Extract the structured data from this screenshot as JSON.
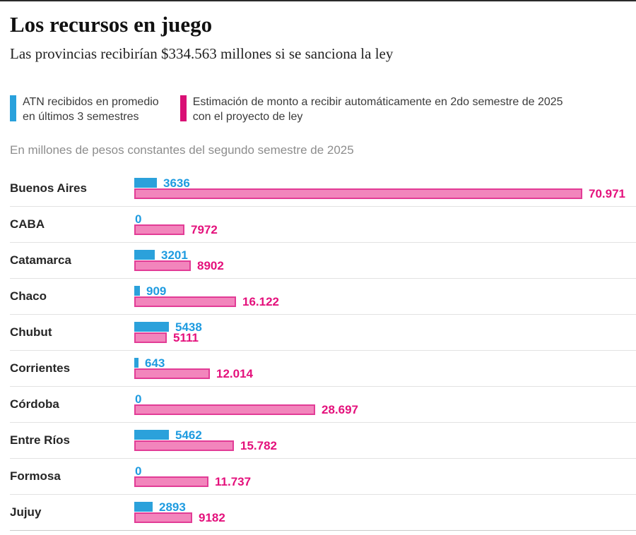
{
  "header": {
    "title": "Los recursos en juego",
    "subtitle": "Las provincias recibirían $334.563 millones si se sanciona la ley"
  },
  "legend": {
    "items": [
      {
        "lines": [
          "ATN recibidos en promedio",
          "en últimos 3 semestres"
        ],
        "color": "#29a1dc"
      },
      {
        "lines": [
          "Estimación de monto a recibir automáticamente en 2do semestre de 2025",
          "con el proyecto de ley"
        ],
        "color": "#d90f75"
      }
    ]
  },
  "note": "En millones de pesos constantes del segundo semestre de 2025",
  "chart_data": {
    "type": "bar",
    "orientation": "horizontal",
    "title": "Los recursos en juego",
    "subtitle": "Las provincias recibirían $334.563 millones si se sanciona la ley",
    "units_note": "En millones de pesos constantes del segundo semestre de 2025",
    "categories": [
      "Buenos Aires",
      "CABA",
      "Catamarca",
      "Chaco",
      "Chubut",
      "Corrientes",
      "Córdoba",
      "Entre Ríos",
      "Formosa",
      "Jujuy"
    ],
    "series": [
      {
        "name": "ATN recibidos en promedio en últimos 3 semestres",
        "color": "#2ba1db",
        "text_color": "#1e9be0",
        "values": [
          3636,
          0,
          3201,
          909,
          5438,
          643,
          0,
          5462,
          0,
          2893
        ],
        "labels": [
          "3636",
          "0",
          "3201",
          "909",
          "5438",
          "643",
          "0",
          "5462",
          "0",
          "2893"
        ]
      },
      {
        "name": "Estimación de monto a recibir automáticamente en 2do semestre de 2025 con el proyecto de ley",
        "color": "#f285bc",
        "border_color": "#e23c96",
        "text_color": "#e4117c",
        "values": [
          70971,
          7972,
          8902,
          16122,
          5111,
          12014,
          28697,
          15782,
          11737,
          9182
        ],
        "labels": [
          "70.971",
          "7972",
          "8902",
          "16.122",
          "5111",
          "12.014",
          "28.697",
          "15.782",
          "11.737",
          "9182"
        ]
      }
    ],
    "xlim": [
      0,
      70971
    ],
    "grid": false,
    "legend_position": "top"
  },
  "colors": {
    "top_rule": "#2a2a2a",
    "row_divider": "#e2e2e2",
    "bottom_divider": "#c9c9c9",
    "note_text": "#8d8d8d",
    "label_text": "#262626"
  }
}
